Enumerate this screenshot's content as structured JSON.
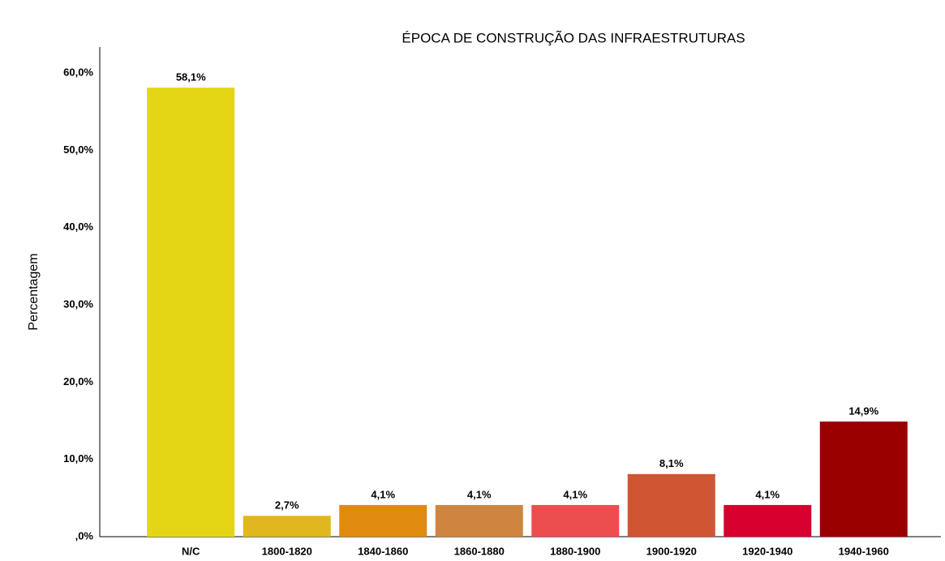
{
  "chart_data": {
    "type": "bar",
    "title": "ÉPOCA DE CONSTRUÇÃO DAS INFRAESTRUTURAS",
    "y_label": "Percentagem",
    "categories": [
      "N/C",
      "1800-1820",
      "1840-1860",
      "1860-1880",
      "1880-1900",
      "1900-1920",
      "1920-1940",
      "1940-1960"
    ],
    "values": [
      58.1,
      2.7,
      4.1,
      4.1,
      4.1,
      8.1,
      4.1,
      14.9
    ],
    "value_labels": [
      "58,1%",
      "2,7%",
      "4,1%",
      "4,1%",
      "4,1%",
      "8,1%",
      "4,1%",
      "14,9%"
    ],
    "colors": [
      "#e3d614",
      "#e0b71e",
      "#e08a10",
      "#cf8540",
      "#ec4d4f",
      "#d05533",
      "#d6002f",
      "#990000"
    ],
    "ylim": [
      0,
      60
    ],
    "yticks": [
      {
        "value": 0,
        "label": ",0%"
      },
      {
        "value": 10,
        "label": "10,0%"
      },
      {
        "value": 20,
        "label": "20,0%"
      },
      {
        "value": 30,
        "label": "30,0%"
      },
      {
        "value": 40,
        "label": "40,0%"
      },
      {
        "value": 50,
        "label": "50,0%"
      },
      {
        "value": 60,
        "label": "60,0%"
      }
    ],
    "grid": false
  }
}
